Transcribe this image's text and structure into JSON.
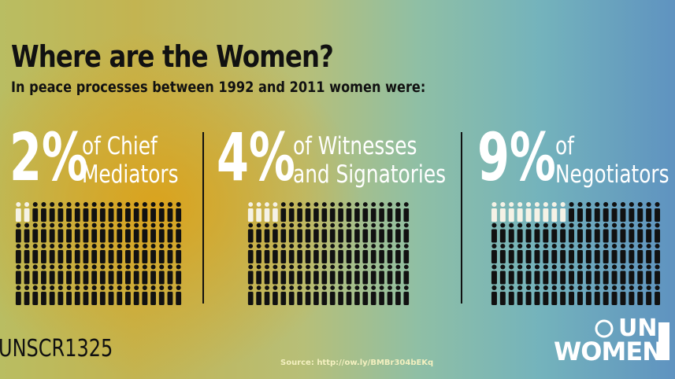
{
  "header": {
    "title": "Where are the Women?",
    "subtitle": "In peace processes between 1992 and 2011 women were:"
  },
  "panels": [
    {
      "percent": {
        "value": 2,
        "label": "2%"
      },
      "lines": [
        "of Chief",
        "Mediators"
      ]
    },
    {
      "percent": {
        "value": 4,
        "label": "4%"
      },
      "lines": [
        "of Witnesses",
        "and Signatories"
      ]
    },
    {
      "percent": {
        "value": 9,
        "label": "9%"
      },
      "lines": [
        "of",
        "Negotiators"
      ]
    }
  ],
  "footer": {
    "hashtag": "UNSCR1325",
    "source": "Source: http://ow.ly/BMBr304bEKq",
    "logo_top": "UN",
    "logo_bottom": "WOMEN"
  }
}
